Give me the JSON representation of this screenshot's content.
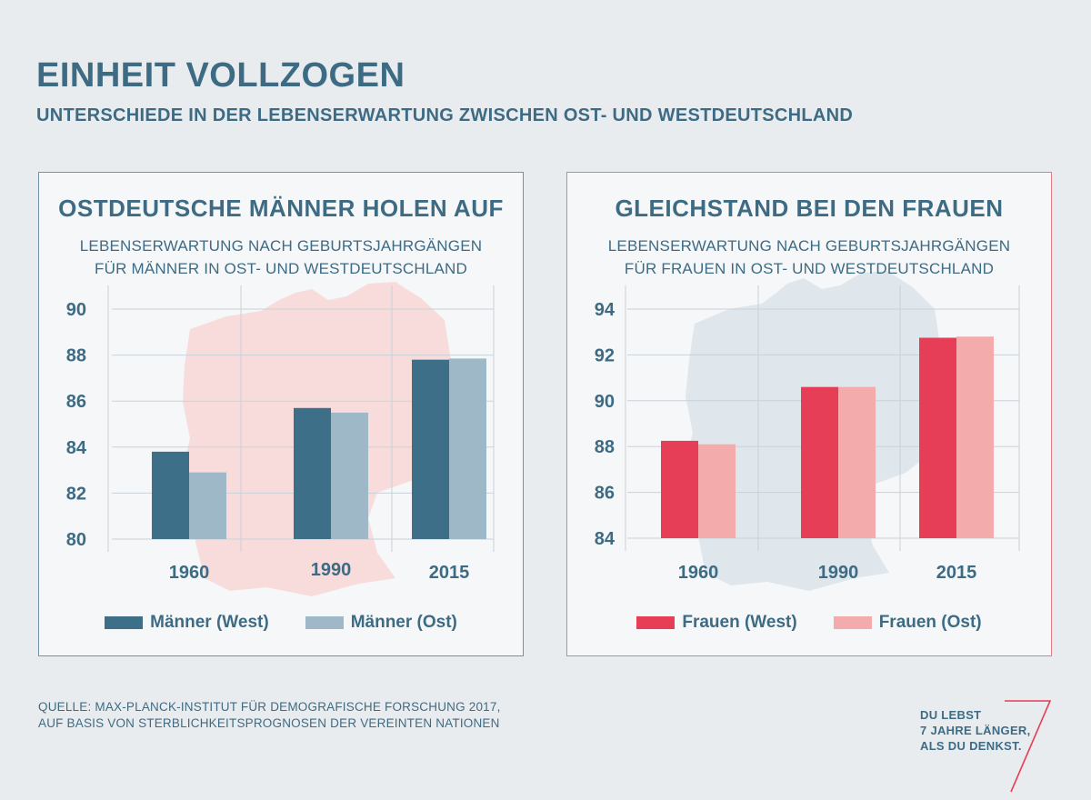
{
  "header": {
    "title": "EINHEIT VOLLZOGEN",
    "subtitle": "UNTERSCHIEDE IN DER LEBENSERWARTUNG ZWISCHEN OST- UND WESTDEUTSCHLAND"
  },
  "colors": {
    "text": "#3e6b84",
    "men_west": "#3e6f89",
    "men_ost": "#9fb8c8",
    "women_west": "#e63e57",
    "women_ost": "#f4abab",
    "map_left": "#f8dcdc",
    "map_right": "#dfe6ec"
  },
  "chart_data": [
    {
      "type": "bar",
      "title": "OSTDEUTSCHE MÄNNER HOLEN AUF",
      "subtitle_lines": [
        "LEBENSERWARTUNG NACH GEBURTSJAHRGÄNGEN",
        "FÜR MÄNNER IN OST- UND WESTDEUTSCHLAND"
      ],
      "categories": [
        "1960",
        "1990",
        "2015"
      ],
      "series": [
        {
          "name": "Männer (West)",
          "values": [
            83.8,
            85.7,
            87.8
          ]
        },
        {
          "name": "Männer (Ost)",
          "values": [
            82.9,
            85.5,
            87.85
          ]
        }
      ],
      "yticks": [
        "80",
        "82",
        "84",
        "86",
        "88",
        "90"
      ],
      "ylim": [
        80,
        90
      ],
      "grid": true,
      "legend": "bottom"
    },
    {
      "type": "bar",
      "title": "GLEICHSTAND BEI DEN FRAUEN",
      "subtitle_lines": [
        "LEBENSERWARTUNG NACH GEBURTSJAHRGÄNGEN",
        "FÜR FRAUEN IN OST- UND WESTDEUTSCHLAND"
      ],
      "categories": [
        "1960",
        "1990",
        "2015"
      ],
      "series": [
        {
          "name": "Frauen (West)",
          "values": [
            88.25,
            90.6,
            92.75
          ]
        },
        {
          "name": "Frauen (Ost)",
          "values": [
            88.1,
            90.6,
            92.8
          ]
        }
      ],
      "yticks": [
        "84",
        "86",
        "88",
        "90",
        "92",
        "94"
      ],
      "ylim": [
        84,
        94
      ],
      "grid": true,
      "legend": "bottom"
    }
  ],
  "source": {
    "line1": "QUELLE: MAX-PLANCK-INSTITUT FÜR DEMOGRAFISCHE FORSCHUNG 2017,",
    "line2": "AUF BASIS VON STERBLICHKEITSPROGNOSEN DER VEREINTEN NATIONEN"
  },
  "slogan": {
    "line1": "DU LEBST",
    "line2": "7 JAHRE LÄNGER,",
    "line3": "ALS DU DENKST."
  }
}
